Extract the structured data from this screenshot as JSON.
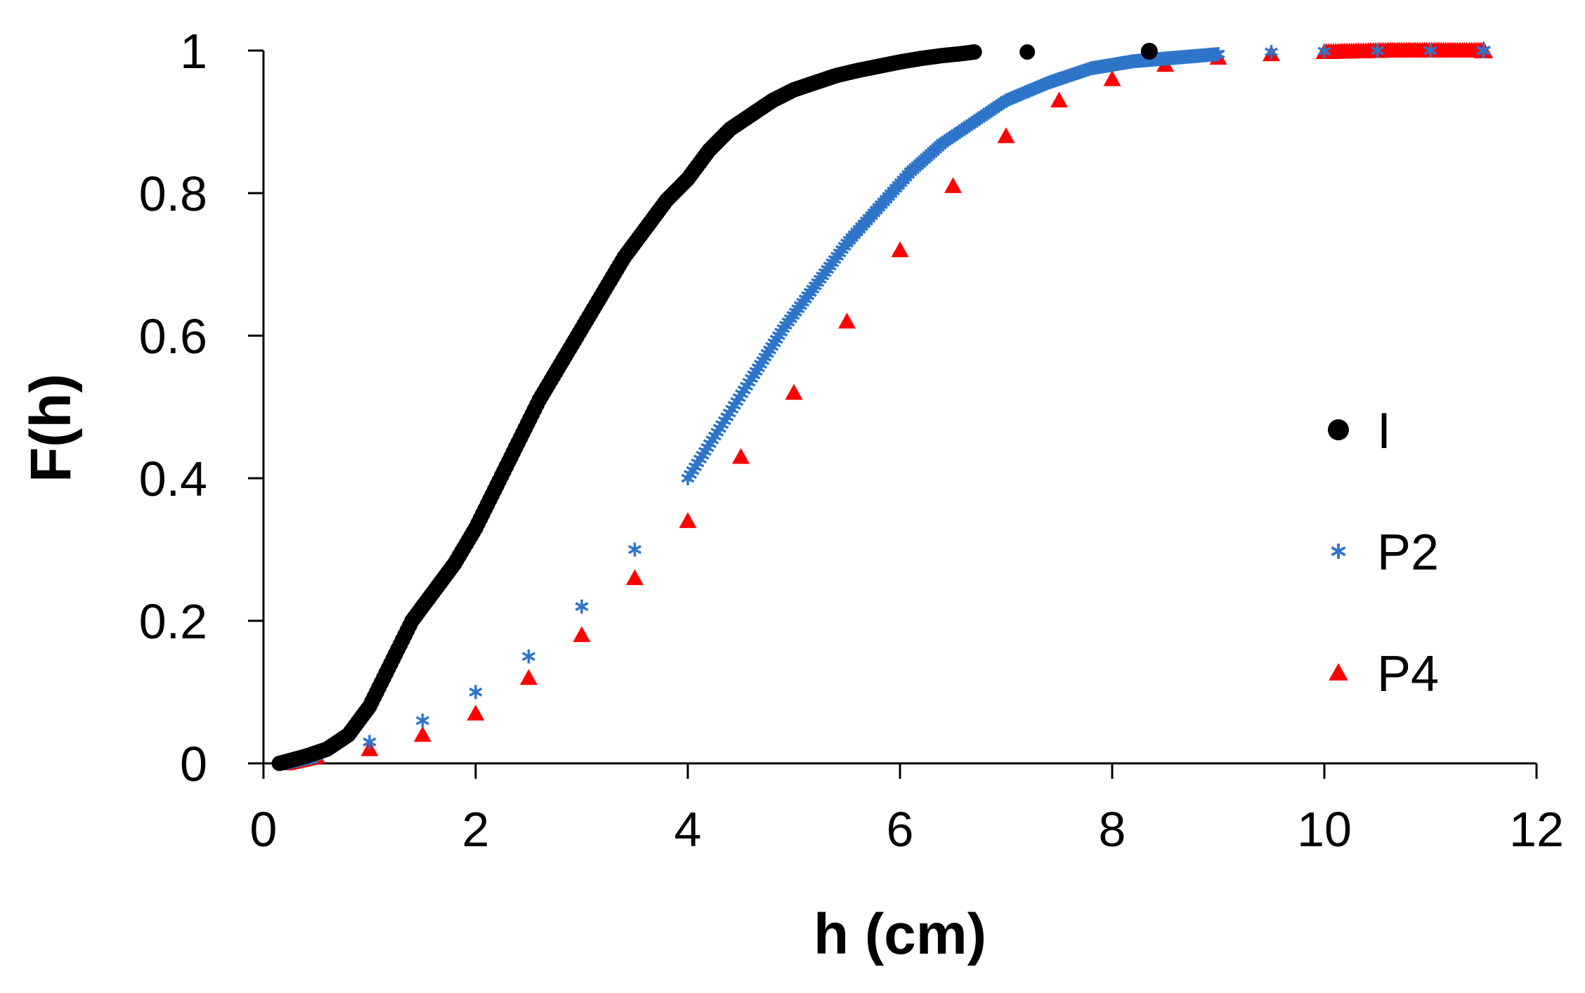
{
  "chart_data": {
    "type": "scatter",
    "title": "",
    "xlabel": "h (cm)",
    "ylabel": "F(h)",
    "xlim": [
      0,
      12
    ],
    "ylim": [
      0,
      1
    ],
    "xticks": [
      "0",
      "2",
      "4",
      "6",
      "8",
      "10",
      "12"
    ],
    "yticks": [
      "0",
      "0.2",
      "0.4",
      "0.6",
      "0.8",
      "1"
    ],
    "grid": false,
    "legend_position": "right",
    "series": [
      {
        "name": "I",
        "color": "#000000",
        "marker": "circle",
        "x": [
          0.15,
          0.4,
          0.6,
          0.8,
          1.0,
          1.2,
          1.4,
          1.6,
          1.8,
          2.0,
          2.2,
          2.4,
          2.6,
          2.8,
          3.0,
          3.2,
          3.4,
          3.6,
          3.8,
          4.0,
          4.2,
          4.4,
          4.6,
          4.8,
          5.0,
          5.2,
          5.4,
          5.6,
          5.8,
          6.0,
          6.2,
          6.4,
          6.6,
          6.7,
          7.2,
          8.35
        ],
        "y": [
          0.0,
          0.01,
          0.02,
          0.04,
          0.08,
          0.14,
          0.2,
          0.24,
          0.28,
          0.33,
          0.39,
          0.45,
          0.51,
          0.56,
          0.61,
          0.66,
          0.71,
          0.75,
          0.79,
          0.82,
          0.86,
          0.89,
          0.91,
          0.93,
          0.945,
          0.955,
          0.965,
          0.972,
          0.978,
          0.984,
          0.989,
          0.993,
          0.996,
          0.998,
          0.998,
          0.999
        ]
      },
      {
        "name": "P2",
        "color": "#2e75c9",
        "marker": "star",
        "x": [
          0.2,
          0.5,
          1.0,
          1.5,
          2.0,
          2.5,
          3.0,
          3.5,
          4.0,
          4.3,
          4.6,
          4.9,
          5.2,
          5.5,
          5.8,
          6.1,
          6.4,
          6.7,
          7.0,
          7.4,
          7.8,
          8.2,
          8.6,
          9.0,
          9.5,
          10.0,
          10.5,
          11.0,
          11.5
        ],
        "y": [
          0.0,
          0.01,
          0.03,
          0.06,
          0.1,
          0.15,
          0.22,
          0.3,
          0.4,
          0.47,
          0.54,
          0.61,
          0.67,
          0.73,
          0.78,
          0.83,
          0.87,
          0.9,
          0.93,
          0.955,
          0.975,
          0.985,
          0.99,
          0.995,
          0.998,
          0.999,
          1.0,
          1.0,
          1.0
        ]
      },
      {
        "name": "P4",
        "color": "#ff0000",
        "marker": "triangle",
        "x": [
          0.2,
          0.5,
          1.0,
          1.5,
          2.0,
          2.5,
          3.0,
          3.5,
          4.0,
          4.5,
          5.0,
          5.5,
          6.0,
          6.5,
          7.0,
          7.5,
          8.0,
          8.5,
          9.0,
          9.5,
          10.0,
          10.3,
          10.6,
          10.9,
          11.1,
          11.3,
          11.5
        ],
        "y": [
          0.0,
          0.01,
          0.02,
          0.04,
          0.07,
          0.12,
          0.18,
          0.26,
          0.34,
          0.43,
          0.52,
          0.62,
          0.72,
          0.81,
          0.88,
          0.93,
          0.96,
          0.98,
          0.99,
          0.995,
          0.998,
          0.999,
          1.0,
          1.0,
          1.0,
          1.0,
          1.0
        ]
      }
    ]
  }
}
